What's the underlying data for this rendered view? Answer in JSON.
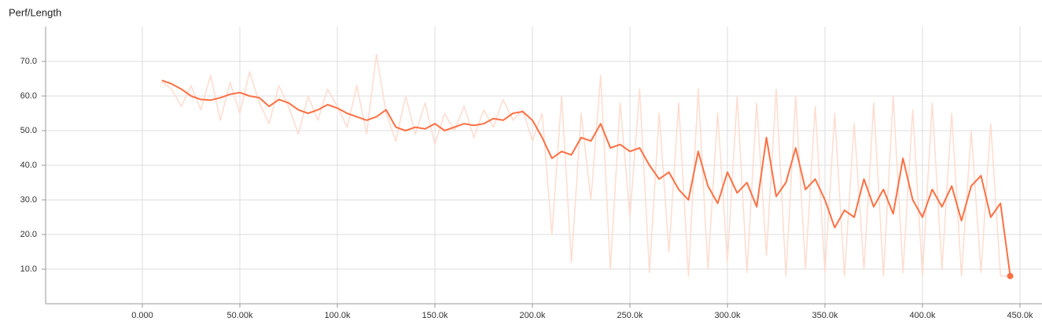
{
  "chart_data": {
    "type": "line",
    "title": "Perf/Length",
    "x": [
      10000,
      15000,
      20000,
      25000,
      30000,
      35000,
      40000,
      45000,
      50000,
      55000,
      60000,
      65000,
      70000,
      75000,
      80000,
      85000,
      90000,
      95000,
      100000,
      105000,
      110000,
      115000,
      120000,
      125000,
      130000,
      135000,
      140000,
      145000,
      150000,
      155000,
      160000,
      165000,
      170000,
      175000,
      180000,
      185000,
      190000,
      195000,
      200000,
      205000,
      210000,
      215000,
      220000,
      225000,
      230000,
      235000,
      240000,
      245000,
      250000,
      255000,
      260000,
      265000,
      270000,
      275000,
      280000,
      285000,
      290000,
      295000,
      300000,
      305000,
      310000,
      315000,
      320000,
      325000,
      330000,
      335000,
      340000,
      345000,
      350000,
      355000,
      360000,
      365000,
      370000,
      375000,
      380000,
      385000,
      390000,
      395000,
      400000,
      405000,
      410000,
      415000,
      420000,
      425000,
      430000,
      435000,
      440000,
      445000
    ],
    "series": [
      {
        "color": "#ffdccf",
        "values": [
          64,
          62,
          57,
          63,
          56,
          66,
          53,
          64,
          55,
          67,
          58,
          52,
          63,
          57,
          49,
          60,
          53,
          62,
          57,
          51,
          63,
          49,
          72,
          55,
          47,
          60,
          49,
          58,
          46,
          55,
          50,
          57,
          48,
          56,
          51,
          59,
          53,
          56,
          47,
          55,
          20,
          60,
          12,
          55,
          30,
          66,
          10,
          58,
          25,
          62,
          9,
          55,
          15,
          58,
          8,
          62,
          10,
          55,
          12,
          60,
          9,
          58,
          14,
          62,
          8,
          60,
          10,
          57,
          9,
          55,
          8,
          52,
          10,
          58,
          8,
          60,
          9,
          56,
          8,
          58,
          10,
          55,
          8,
          50,
          9,
          52,
          8,
          8
        ]
      },
      {
        "color": "#ff7043",
        "values": [
          64.5,
          63.5,
          62,
          60,
          59,
          58.8,
          59.5,
          60.5,
          61,
          60,
          59.5,
          57,
          59,
          58,
          56,
          55,
          56,
          57.5,
          56.5,
          55,
          54,
          53,
          54,
          56,
          51,
          50,
          51,
          50.5,
          52,
          50,
          51,
          52,
          51.5,
          52,
          53.5,
          53,
          55,
          55.5,
          53,
          48,
          42,
          44,
          43,
          48,
          47,
          52,
          45,
          46,
          44,
          45,
          40,
          36,
          38,
          33,
          30,
          44,
          34,
          29,
          38,
          32,
          35,
          28,
          48,
          31,
          35,
          45,
          33,
          36,
          30,
          22,
          27,
          25,
          36,
          28,
          33,
          26,
          42,
          30,
          25,
          33,
          28,
          34,
          24,
          34,
          37,
          25,
          29,
          8
        ]
      }
    ],
    "xlim": [
      -49600,
      461300
    ],
    "ylim": [
      0,
      80
    ],
    "xticks": [
      {
        "value": 0,
        "label": "0.000"
      },
      {
        "value": 50000,
        "label": "50.00k"
      },
      {
        "value": 100000,
        "label": "100.0k"
      },
      {
        "value": 150000,
        "label": "150.0k"
      },
      {
        "value": 200000,
        "label": "200.0k"
      },
      {
        "value": 250000,
        "label": "250.0k"
      },
      {
        "value": 300000,
        "label": "300.0k"
      },
      {
        "value": 350000,
        "label": "350.0k"
      },
      {
        "value": 400000,
        "label": "400.0k"
      },
      {
        "value": 450000,
        "label": "450.0k"
      }
    ],
    "yticks": [
      {
        "value": 10,
        "label": "10.0"
      },
      {
        "value": 20,
        "label": "20.0"
      },
      {
        "value": 30,
        "label": "30.0"
      },
      {
        "value": 40,
        "label": "40.0"
      },
      {
        "value": 50,
        "label": "50.0"
      },
      {
        "value": 60,
        "label": "60.0"
      },
      {
        "value": 70,
        "label": "70.0"
      }
    ],
    "grid": true
  }
}
